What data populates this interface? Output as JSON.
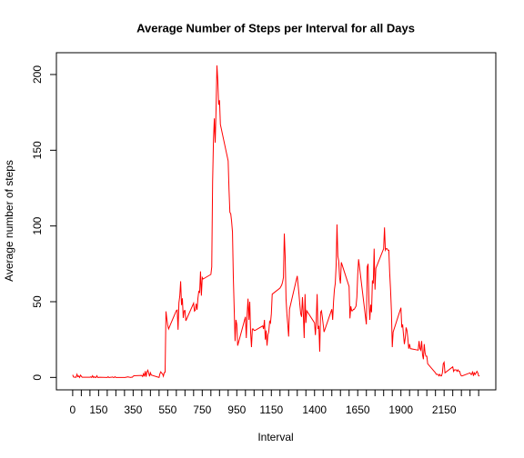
{
  "chart_data": {
    "type": "line",
    "title": "Average Number of Steps per Interval for all Days",
    "xlabel": "Interval",
    "ylabel": "Average number of steps",
    "color": "#ff0000",
    "x": [
      0,
      5,
      10,
      15,
      20,
      25,
      30,
      35,
      40,
      45,
      50,
      55,
      100,
      105,
      110,
      115,
      120,
      125,
      130,
      135,
      140,
      145,
      150,
      155,
      200,
      205,
      210,
      215,
      220,
      225,
      230,
      235,
      240,
      245,
      250,
      255,
      300,
      305,
      310,
      315,
      320,
      325,
      330,
      335,
      340,
      345,
      350,
      355,
      400,
      405,
      410,
      415,
      420,
      425,
      430,
      435,
      440,
      445,
      450,
      455,
      500,
      505,
      510,
      515,
      520,
      525,
      530,
      535,
      540,
      545,
      550,
      555,
      600,
      605,
      610,
      615,
      620,
      625,
      630,
      635,
      640,
      645,
      650,
      655,
      700,
      705,
      710,
      715,
      720,
      725,
      730,
      735,
      740,
      745,
      750,
      755,
      800,
      805,
      810,
      815,
      820,
      825,
      830,
      835,
      840,
      845,
      850,
      855,
      900,
      905,
      910,
      915,
      920,
      925,
      930,
      935,
      940,
      945,
      950,
      955,
      1000,
      1005,
      1010,
      1015,
      1020,
      1025,
      1030,
      1035,
      1040,
      1045,
      1050,
      1055,
      1100,
      1105,
      1110,
      1115,
      1120,
      1125,
      1130,
      1135,
      1140,
      1145,
      1150,
      1155,
      1200,
      1205,
      1210,
      1215,
      1220,
      1225,
      1230,
      1235,
      1240,
      1245,
      1250,
      1255,
      1300,
      1305,
      1310,
      1315,
      1320,
      1325,
      1330,
      1335,
      1340,
      1345,
      1350,
      1355,
      1400,
      1405,
      1410,
      1415,
      1420,
      1425,
      1430,
      1435,
      1440,
      1445,
      1450,
      1455,
      1500,
      1505,
      1510,
      1515,
      1520,
      1525,
      1530,
      1535,
      1540,
      1545,
      1550,
      1555,
      1600,
      1605,
      1610,
      1615,
      1620,
      1625,
      1630,
      1635,
      1640,
      1645,
      1650,
      1655,
      1700,
      1705,
      1710,
      1715,
      1720,
      1725,
      1730,
      1735,
      1740,
      1745,
      1750,
      1755,
      1800,
      1805,
      1810,
      1815,
      1820,
      1825,
      1830,
      1835,
      1840,
      1845,
      1850,
      1855,
      1900,
      1905,
      1910,
      1915,
      1920,
      1925,
      1930,
      1935,
      1940,
      1945,
      1950,
      1955,
      2000,
      2005,
      2010,
      2015,
      2020,
      2025,
      2030,
      2035,
      2040,
      2045,
      2050,
      2055,
      2100,
      2105,
      2110,
      2115,
      2120,
      2125,
      2130,
      2135,
      2140,
      2145,
      2150,
      2155,
      2200,
      2205,
      2210,
      2215,
      2220,
      2225,
      2230,
      2235,
      2240,
      2245,
      2250,
      2255,
      2300,
      2305,
      2310,
      2315,
      2320,
      2325,
      2330,
      2335,
      2340,
      2345,
      2350,
      2355
    ],
    "values": [
      1.7,
      0.3,
      0.1,
      0.2,
      0.1,
      2.1,
      0.5,
      0.9,
      0,
      1.5,
      0.8,
      0.1,
      0.1,
      0.4,
      0,
      1.1,
      0,
      0.4,
      0,
      0,
      1.1,
      0,
      0,
      0.1,
      0,
      0.4,
      0,
      0,
      0.1,
      0.1,
      0.3,
      0,
      0,
      0.5,
      0,
      0,
      0,
      0,
      0.2,
      0.2,
      0.4,
      0.2,
      0.1,
      0,
      0.1,
      0.1,
      0.8,
      1.1,
      1.3,
      0.6,
      2.4,
      0.7,
      4.1,
      0.5,
      3.6,
      4.8,
      2.9,
      0.7,
      3.1,
      1.6,
      0,
      2.4,
      3.7,
      2.8,
      2.5,
      0.8,
      3.2,
      3.4,
      43.6,
      38.6,
      34.5,
      32,
      44.1,
      44.5,
      31.5,
      49.3,
      53.8,
      63.5,
      47.8,
      52.2,
      39.3,
      44,
      44.2,
      37.4,
      49,
      43.8,
      44.4,
      48.7,
      44.7,
      52.3,
      56.8,
      56.2,
      70,
      54,
      66,
      65,
      68,
      73,
      129,
      157,
      171,
      155,
      177,
      206,
      196,
      180,
      183,
      167,
      143,
      124,
      109,
      108,
      103,
      96,
      66,
      45,
      24,
      38,
      35,
      21,
      40,
      26,
      42,
      52,
      38,
      50,
      30,
      20,
      32,
      32,
      31,
      31,
      34,
      32,
      38,
      25,
      31,
      21,
      28,
      30,
      37,
      36,
      42,
      55,
      59,
      60,
      61,
      63,
      66,
      95,
      80,
      52,
      42,
      35,
      27,
      45,
      67,
      61,
      55,
      48,
      42,
      40,
      53,
      42,
      26,
      55,
      36,
      44,
      36,
      28,
      38,
      55,
      32,
      34,
      17,
      43,
      44,
      40,
      35,
      30,
      45,
      38,
      50,
      58,
      62,
      74,
      101,
      80,
      77,
      66,
      62,
      76,
      60,
      39,
      47,
      44,
      44,
      45,
      45,
      46,
      47,
      53,
      68,
      78,
      35,
      73,
      75,
      50,
      38,
      48,
      43,
      64,
      62,
      85,
      58,
      72,
      85,
      99,
      84,
      85,
      85,
      84,
      84,
      69,
      58,
      44,
      20,
      30,
      46,
      33,
      35,
      28,
      22,
      26,
      33,
      31,
      26,
      19,
      22,
      19,
      18,
      24,
      19,
      18,
      24,
      15,
      12,
      22,
      16,
      14,
      14,
      9,
      3,
      2,
      2,
      2,
      1,
      2,
      1,
      1,
      3,
      9,
      10,
      3,
      7,
      4,
      5,
      5,
      5,
      4,
      5,
      4,
      4,
      2,
      1,
      1,
      3,
      2,
      2,
      4,
      1,
      3,
      2,
      3,
      4,
      3,
      1,
      1
    ],
    "xlim": [
      -94.2,
      2449.2
    ],
    "ylim": [
      -8.2,
      214.4
    ],
    "xticks": [
      0,
      150,
      350,
      550,
      750,
      950,
      1150,
      1400,
      1650,
      1900,
      2150
    ],
    "xminorticks": [
      50,
      100,
      200,
      250,
      300,
      400,
      450,
      500,
      600,
      650,
      700,
      800,
      850,
      900,
      1000,
      1050,
      1100,
      1200,
      1250,
      1300,
      1350,
      1450,
      1500,
      1550,
      1600,
      1700,
      1750,
      1800,
      1850,
      1950,
      2000,
      2050,
      2100,
      2200,
      2250,
      2300,
      2350
    ],
    "yticks": [
      0,
      50,
      100,
      150,
      200
    ]
  }
}
